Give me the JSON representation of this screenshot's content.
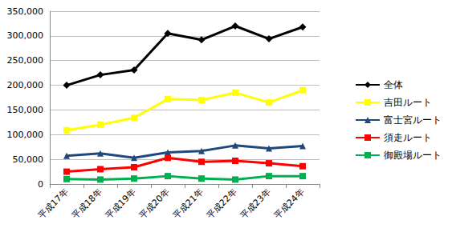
{
  "chart_data": {
    "type": "line",
    "categories": [
      "平成17年",
      "平成18年",
      "平成19年",
      "平成20年",
      "平成21年",
      "平成22年",
      "平成23年",
      "平成24年"
    ],
    "series": [
      {
        "name": "全体",
        "color": "#000000",
        "marker": "diamond",
        "values": [
          200000,
          221000,
          231000,
          305000,
          292000,
          320000,
          294000,
          318000
        ]
      },
      {
        "name": "吉田ルート",
        "color": "#ffff00",
        "marker": "square",
        "values": [
          109000,
          120000,
          134000,
          172000,
          170000,
          185000,
          165000,
          190000
        ]
      },
      {
        "name": "富士宮ルート",
        "color": "#1f497d",
        "marker": "triangle",
        "values": [
          57000,
          62000,
          53000,
          64000,
          67000,
          78000,
          72000,
          77000
        ]
      },
      {
        "name": "須走ルート",
        "color": "#ff0000",
        "marker": "square",
        "values": [
          25000,
          30000,
          34000,
          53000,
          45000,
          47000,
          42000,
          36000
        ]
      },
      {
        "name": "御殿場ルート",
        "color": "#00b050",
        "marker": "square",
        "values": [
          10000,
          9000,
          11000,
          16000,
          11000,
          9000,
          16000,
          16000
        ]
      }
    ],
    "ylim": [
      0,
      350000
    ],
    "yticks": [
      0,
      {
        "value": 50000,
        "label": "50,000"
      },
      {
        "value": 100000,
        "label": "100,000"
      },
      {
        "value": 150000,
        "label": "150,000"
      },
      {
        "value": 200000,
        "label": "200,000"
      },
      {
        "value": 250000,
        "label": "250,000"
      },
      {
        "value": 300000,
        "label": "300,000"
      },
      {
        "value": 350000,
        "label": "350,000"
      }
    ],
    "grid": true,
    "legend": "right"
  }
}
